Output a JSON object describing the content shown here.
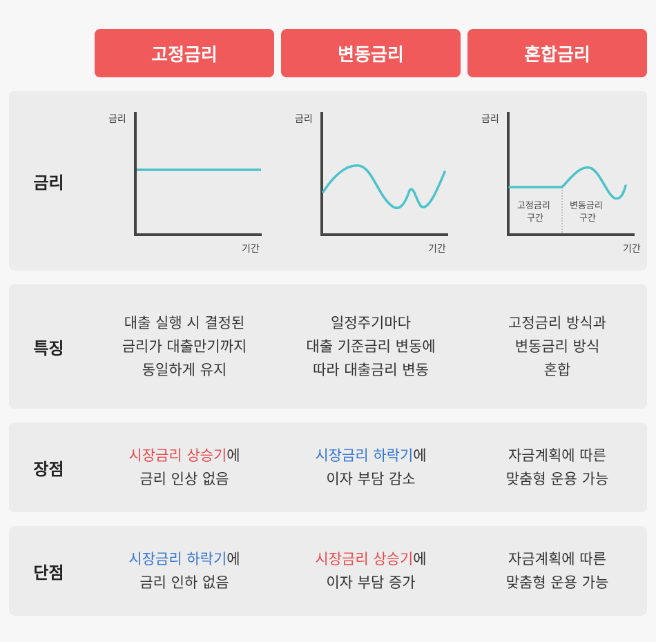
{
  "headers": [
    "고정금리",
    "변동금리",
    "혼합금리"
  ],
  "rows": {
    "rate": {
      "label": "금리"
    },
    "feature": {
      "label": "특징",
      "cells": [
        [
          "대출 실행 시 결정된",
          "금리가 대출만기까지",
          "동일하게 유지"
        ],
        [
          "일정주기마다",
          "대출 기준금리 변동에",
          "따라 대출금리 변동"
        ],
        [
          "고정금리 방식과",
          "변동금리 방식",
          "혼합"
        ]
      ]
    },
    "pros": {
      "label": "장점",
      "cells": [
        {
          "hl": "시장금리 상승기",
          "tail": "에",
          "line2": "금리 인상 없음"
        },
        {
          "hl": "시장금리 하락기",
          "tail": "에",
          "line2": "이자 부담 감소"
        },
        {
          "line1": "자금계획에 따른",
          "line2": "맞춤형 운용 가능"
        }
      ]
    },
    "cons": {
      "label": "단점",
      "cells": [
        {
          "hl": "시장금리 하락기",
          "tail": "에",
          "line2": "금리 인하 없음"
        },
        {
          "hl": "시장금리 상승기",
          "tail": "에",
          "line2": "이자 부담 증가"
        },
        {
          "line1": "자금계획에 따른",
          "line2": "맞춤형 운용 가능"
        }
      ]
    }
  },
  "charts": {
    "y_label": "금리",
    "x_label": "기간",
    "mixed_fixed_zone": [
      "고정금리",
      "구간"
    ],
    "mixed_variable_zone": [
      "변동금리",
      "구간"
    ]
  },
  "colors": {
    "header": "#f15a5b",
    "line": "#4cc3c9",
    "red": "#e84b4f",
    "blue": "#3575d3"
  }
}
